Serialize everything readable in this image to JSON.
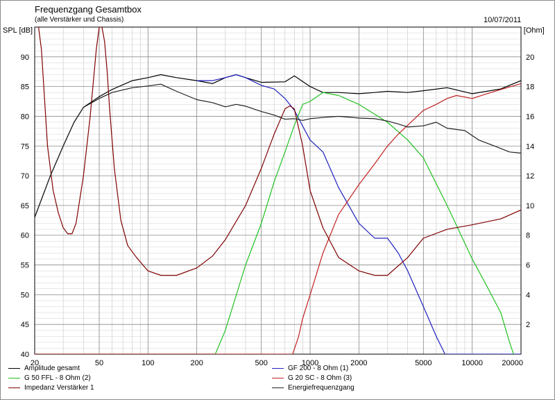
{
  "title": "Frequenzgang Gesamtbox",
  "subtitle": "(alle Verstärker und Chassis)",
  "date": "10/07/2011",
  "chart_data": {
    "type": "line",
    "xscale": "log",
    "xlim": [
      20,
      20000
    ],
    "ylim": [
      40,
      95
    ],
    "y2lim": [
      0,
      22
    ],
    "grid": true,
    "ylabel": "SPL [dB]",
    "y2label": "Z [Ohm]",
    "x_ticks": [
      20,
      50,
      100,
      200,
      500,
      1000,
      2000,
      5000,
      10000,
      20000
    ],
    "x_tick_labels": [
      "20",
      "50",
      "100",
      "200",
      "500",
      "1000",
      "2000",
      "5000",
      "10000",
      "20000"
    ],
    "y_ticks": [
      40,
      45,
      50,
      55,
      60,
      65,
      70,
      75,
      80,
      85,
      90
    ],
    "y_tick_labels": [
      "40",
      "45",
      "50",
      "55",
      "60",
      "65",
      "70",
      "75",
      "80",
      "85",
      "90"
    ],
    "y2_ticks": [
      2,
      4,
      6,
      8,
      10,
      12,
      14,
      16,
      18,
      20
    ],
    "y2_tick_labels": [
      "2",
      "4",
      "6",
      "8",
      "10",
      "12",
      "14",
      "16",
      "18",
      "20"
    ],
    "legend_position": "bottom",
    "series": [
      {
        "name": "Amplitude gesamt",
        "color": "#000000",
        "axis": "left",
        "x": [
          20,
          25,
          30,
          35,
          40,
          50,
          60,
          80,
          100,
          120,
          150,
          200,
          250,
          300,
          350,
          400,
          500,
          700,
          800,
          1000,
          1200,
          1500,
          2000,
          2500,
          3000,
          4000,
          5000,
          7000,
          10000,
          15000,
          20000
        ],
        "y": [
          63,
          70,
          75,
          79,
          81.5,
          83.3,
          84.5,
          86,
          86.5,
          87,
          86.5,
          86,
          85.5,
          86.5,
          87,
          86.5,
          85.7,
          85.8,
          86.8,
          85,
          84,
          84,
          83.8,
          84,
          84.2,
          84,
          84.3,
          84.8,
          83.8,
          84.6,
          86
        ]
      },
      {
        "name": "GF 200 - 8 Ohm (1)",
        "color": "#2020c0",
        "axis": "left",
        "x": [
          200,
          250,
          300,
          350,
          400,
          500,
          600,
          700,
          800,
          1000,
          1200,
          1500,
          2000,
          2500,
          3000,
          3500,
          4000,
          5000,
          6000,
          6800,
          10000,
          20000
        ],
        "y": [
          86,
          86,
          86.5,
          87,
          86.5,
          85.2,
          84.6,
          83,
          81,
          76,
          74,
          68,
          62,
          59.5,
          59.5,
          57,
          54,
          48,
          43,
          40,
          40,
          40
        ]
      },
      {
        "name": "G 50 FFL - 8 Ohm (2)",
        "color": "#20c020",
        "axis": "left",
        "x": [
          20,
          260,
          300,
          400,
          500,
          600,
          700,
          800,
          900,
          1000,
          1200,
          1500,
          2000,
          3000,
          4000,
          5000,
          7000,
          10000,
          12000,
          15000,
          17000,
          18000
        ],
        "y": [
          40,
          40,
          44,
          55,
          62,
          69,
          74,
          78.5,
          82,
          82.5,
          84,
          83.5,
          82,
          79,
          76,
          73,
          65,
          56,
          52,
          47,
          42,
          40
        ]
      },
      {
        "name": "G 20 SC - 8 Ohm (3)",
        "color": "#c02020",
        "axis": "left",
        "x": [
          20,
          780,
          850,
          900,
          1000,
          1200,
          1500,
          2000,
          2500,
          3000,
          3500,
          4000,
          5000,
          6000,
          7000,
          8000,
          10000,
          12000,
          15000,
          20000
        ],
        "y": [
          40,
          40,
          43,
          46,
          50,
          57,
          63.5,
          68.5,
          72,
          75,
          77,
          78.5,
          81,
          82,
          83,
          83.5,
          83,
          83.7,
          84.5,
          85.5
        ]
      },
      {
        "name": "Impedanz Verstärker 1",
        "color": "#800000",
        "axis": "right",
        "x": [
          20,
          22,
          24,
          26,
          28,
          30,
          32,
          34,
          36,
          40,
          44,
          48,
          50,
          52,
          54,
          56,
          58,
          62,
          68,
          75,
          85,
          100,
          120,
          150,
          200,
          250,
          300,
          400,
          500,
          600,
          700,
          750,
          800,
          900,
          1000,
          1200,
          1500,
          2000,
          2500,
          3000,
          4000,
          5000,
          7000,
          10000,
          15000,
          20000
        ],
        "y": [
          24,
          20.5,
          14,
          11,
          9.5,
          8.5,
          8.1,
          8.1,
          8.8,
          12,
          16,
          20.5,
          22,
          22,
          21,
          19,
          16.5,
          12.5,
          9,
          7.3,
          6.5,
          5.6,
          5.3,
          5.3,
          5.8,
          6.6,
          7.7,
          10,
          12.5,
          14.8,
          16.5,
          16.7,
          16.5,
          14,
          11,
          8.5,
          6.5,
          5.6,
          5.3,
          5.3,
          6.5,
          7.8,
          8.4,
          8.7,
          9.1,
          9.7
        ]
      },
      {
        "name": "Energiefrequenzgang",
        "color": "#202020",
        "axis": "left",
        "x": [
          20,
          25,
          30,
          35,
          40,
          50,
          60,
          80,
          100,
          120,
          150,
          200,
          250,
          300,
          350,
          400,
          500,
          600,
          700,
          800,
          900,
          1000,
          1200,
          1500,
          2000,
          2500,
          3000,
          3500,
          4000,
          5000,
          6000,
          7000,
          9000,
          11000,
          14000,
          17000,
          20000
        ],
        "y": [
          63,
          70,
          75,
          79,
          81.5,
          83,
          84,
          84.8,
          85.1,
          85.4,
          84.2,
          82.8,
          82.3,
          81.6,
          82,
          81.7,
          80.8,
          80.2,
          79.5,
          79.6,
          79.3,
          79.6,
          79.8,
          80,
          79.7,
          79.6,
          79.2,
          78.7,
          78.2,
          78.4,
          79,
          78,
          77.6,
          76,
          74.9,
          74,
          73.8
        ]
      }
    ]
  }
}
